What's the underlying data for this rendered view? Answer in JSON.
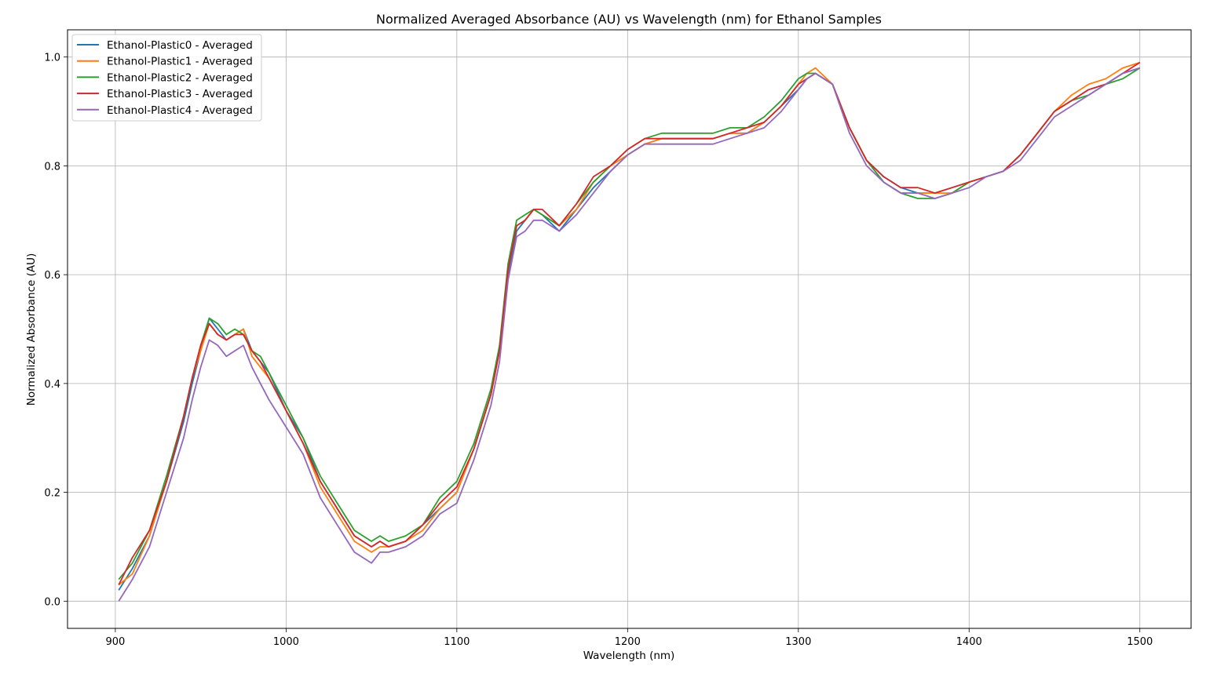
{
  "chart_data": {
    "type": "line",
    "title": "Normalized Averaged Absorbance (AU) vs Wavelength (nm) for Ethanol Samples",
    "xlabel": "Wavelength (nm)",
    "ylabel": "Normalized Absorbance (AU)",
    "xlim": [
      872,
      1530
    ],
    "ylim": [
      -0.05,
      1.05
    ],
    "xticks": [
      900,
      1000,
      1100,
      1200,
      1300,
      1400,
      1500
    ],
    "yticks": [
      0.0,
      0.2,
      0.4,
      0.6,
      0.8,
      1.0
    ],
    "xtick_labels": [
      "900",
      "1000",
      "1100",
      "1200",
      "1300",
      "1400",
      "1500"
    ],
    "ytick_labels": [
      "0.0",
      "0.2",
      "0.4",
      "0.6",
      "0.8",
      "1.0"
    ],
    "grid": true,
    "legend_position": "top-left",
    "x": [
      902,
      910,
      920,
      930,
      940,
      945,
      950,
      955,
      960,
      965,
      970,
      975,
      980,
      985,
      990,
      1000,
      1010,
      1020,
      1030,
      1040,
      1050,
      1055,
      1060,
      1070,
      1080,
      1090,
      1100,
      1110,
      1120,
      1125,
      1130,
      1135,
      1140,
      1145,
      1150,
      1160,
      1170,
      1180,
      1190,
      1200,
      1210,
      1220,
      1230,
      1240,
      1250,
      1260,
      1270,
      1280,
      1290,
      1300,
      1305,
      1310,
      1320,
      1330,
      1340,
      1350,
      1360,
      1370,
      1380,
      1390,
      1400,
      1410,
      1420,
      1430,
      1440,
      1450,
      1460,
      1470,
      1480,
      1490,
      1500
    ],
    "series": [
      {
        "name": "Ethanol-Plastic0 - Averaged",
        "color": "#1f77b4",
        "values": [
          0.02,
          0.06,
          0.12,
          0.22,
          0.33,
          0.4,
          0.46,
          0.52,
          0.5,
          0.48,
          0.49,
          0.5,
          0.46,
          0.44,
          0.42,
          0.35,
          0.3,
          0.22,
          0.17,
          0.12,
          0.1,
          0.11,
          0.1,
          0.11,
          0.14,
          0.17,
          0.2,
          0.28,
          0.38,
          0.46,
          0.6,
          0.68,
          0.7,
          0.72,
          0.71,
          0.68,
          0.72,
          0.76,
          0.79,
          0.82,
          0.84,
          0.85,
          0.85,
          0.85,
          0.85,
          0.86,
          0.86,
          0.88,
          0.91,
          0.94,
          0.96,
          0.97,
          0.95,
          0.87,
          0.81,
          0.78,
          0.76,
          0.75,
          0.75,
          0.76,
          0.77,
          0.78,
          0.79,
          0.82,
          0.86,
          0.9,
          0.92,
          0.94,
          0.95,
          0.97,
          0.98
        ]
      },
      {
        "name": "Ethanol-Plastic1 - Averaged",
        "color": "#ff7f0e",
        "values": [
          0.03,
          0.05,
          0.12,
          0.22,
          0.34,
          0.41,
          0.46,
          0.51,
          0.49,
          0.48,
          0.49,
          0.5,
          0.45,
          0.43,
          0.41,
          0.35,
          0.29,
          0.21,
          0.16,
          0.11,
          0.09,
          0.1,
          0.1,
          0.11,
          0.13,
          0.17,
          0.2,
          0.28,
          0.38,
          0.46,
          0.61,
          0.69,
          0.7,
          0.72,
          0.71,
          0.69,
          0.72,
          0.77,
          0.8,
          0.82,
          0.84,
          0.85,
          0.85,
          0.85,
          0.85,
          0.86,
          0.86,
          0.88,
          0.91,
          0.95,
          0.97,
          0.98,
          0.95,
          0.87,
          0.81,
          0.77,
          0.75,
          0.75,
          0.75,
          0.75,
          0.77,
          0.78,
          0.79,
          0.82,
          0.86,
          0.9,
          0.93,
          0.95,
          0.96,
          0.98,
          0.99
        ]
      },
      {
        "name": "Ethanol-Plastic2 - Averaged",
        "color": "#2ca02c",
        "values": [
          0.04,
          0.07,
          0.13,
          0.23,
          0.34,
          0.41,
          0.47,
          0.52,
          0.51,
          0.49,
          0.5,
          0.49,
          0.46,
          0.45,
          0.42,
          0.36,
          0.3,
          0.23,
          0.18,
          0.13,
          0.11,
          0.12,
          0.11,
          0.12,
          0.14,
          0.19,
          0.22,
          0.29,
          0.39,
          0.47,
          0.62,
          0.7,
          0.71,
          0.72,
          0.71,
          0.69,
          0.73,
          0.77,
          0.8,
          0.83,
          0.85,
          0.86,
          0.86,
          0.86,
          0.86,
          0.87,
          0.87,
          0.89,
          0.92,
          0.96,
          0.97,
          0.97,
          0.95,
          0.87,
          0.81,
          0.77,
          0.75,
          0.74,
          0.74,
          0.75,
          0.77,
          0.78,
          0.79,
          0.82,
          0.86,
          0.9,
          0.92,
          0.93,
          0.95,
          0.96,
          0.98
        ]
      },
      {
        "name": "Ethanol-Plastic3 - Averaged",
        "color": "#d62728",
        "values": [
          0.03,
          0.08,
          0.13,
          0.22,
          0.34,
          0.41,
          0.47,
          0.51,
          0.49,
          0.48,
          0.49,
          0.49,
          0.46,
          0.44,
          0.41,
          0.35,
          0.29,
          0.22,
          0.17,
          0.12,
          0.1,
          0.11,
          0.1,
          0.11,
          0.14,
          0.18,
          0.21,
          0.28,
          0.38,
          0.46,
          0.61,
          0.69,
          0.7,
          0.72,
          0.72,
          0.69,
          0.73,
          0.78,
          0.8,
          0.83,
          0.85,
          0.85,
          0.85,
          0.85,
          0.85,
          0.86,
          0.87,
          0.88,
          0.91,
          0.95,
          0.96,
          0.97,
          0.95,
          0.87,
          0.81,
          0.78,
          0.76,
          0.76,
          0.75,
          0.76,
          0.77,
          0.78,
          0.79,
          0.82,
          0.86,
          0.9,
          0.92,
          0.94,
          0.95,
          0.97,
          0.99
        ]
      },
      {
        "name": "Ethanol-Plastic4 - Averaged",
        "color": "#9467bd",
        "values": [
          0.0,
          0.04,
          0.1,
          0.2,
          0.3,
          0.37,
          0.43,
          0.48,
          0.47,
          0.45,
          0.46,
          0.47,
          0.43,
          0.4,
          0.37,
          0.32,
          0.27,
          0.19,
          0.14,
          0.09,
          0.07,
          0.09,
          0.09,
          0.1,
          0.12,
          0.16,
          0.18,
          0.26,
          0.36,
          0.44,
          0.59,
          0.67,
          0.68,
          0.7,
          0.7,
          0.68,
          0.71,
          0.75,
          0.79,
          0.82,
          0.84,
          0.84,
          0.84,
          0.84,
          0.84,
          0.85,
          0.86,
          0.87,
          0.9,
          0.94,
          0.96,
          0.97,
          0.95,
          0.86,
          0.8,
          0.77,
          0.75,
          0.75,
          0.74,
          0.75,
          0.76,
          0.78,
          0.79,
          0.81,
          0.85,
          0.89,
          0.91,
          0.93,
          0.95,
          0.97,
          0.98
        ]
      }
    ]
  }
}
